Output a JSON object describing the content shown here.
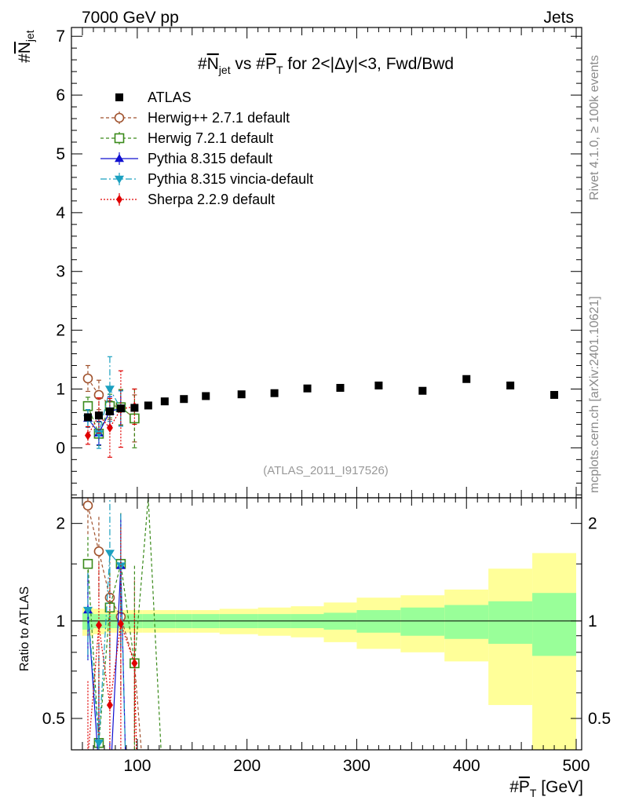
{
  "header": {
    "left": "7000 GeV pp",
    "right": "Jets"
  },
  "side_text": {
    "rivet": "Rivet 4.1.0, ≥ 100k events",
    "mcplots": "mcplots.cern.ch [arXiv:2401.10621]"
  },
  "watermark": "(ATLAS_2011_I917526)",
  "colors": {
    "data": "#000000",
    "herwig_pp": "#a0522d",
    "herwig7": "#3a8a1a",
    "pythia": "#1010d0",
    "vincia": "#1aa0c0",
    "sherpa": "#e00000",
    "band_inner": "#99ff99",
    "band_outer": "#ffff99"
  },
  "chart_data": {
    "type": "scatter",
    "title": {
      "prefix": "#",
      "n": "N",
      "n_sub": "jet",
      "mid": " vs #",
      "p": "P",
      "p_sub": "T",
      "suffix": " for 2<|Δy|<3, Fwd/Bwd"
    },
    "ylabel": {
      "prefix": "#",
      "n": "N",
      "sub": "jet"
    },
    "xlabel": {
      "prefix": "#",
      "p": "P",
      "sub": "T",
      "suffix": " [GeV]"
    },
    "ratio_ylabel": "Ratio to ATLAS",
    "xlim": [
      40,
      505
    ],
    "ylim": [
      -0.85,
      7.15
    ],
    "ratio_ylim": [
      0.4,
      2.4
    ],
    "x_ticks": [
      "100",
      "200",
      "300",
      "400",
      "500"
    ],
    "y_ticks": [
      "0",
      "1",
      "2",
      "3",
      "4",
      "5",
      "6",
      "7"
    ],
    "ratio_ticks": [
      "0.5",
      "1",
      "2"
    ],
    "legend": [
      "ATLAS",
      "Herwig++ 2.7.1 default",
      "Herwig 7.2.1 default",
      "Pythia 8.315 default",
      "Pythia 8.315 vincia-default",
      "Sherpa 2.2.9 default"
    ],
    "data": {
      "name": "ATLAS",
      "x": [
        55,
        65,
        75,
        85,
        97.5,
        110,
        125,
        142.5,
        162.5,
        195,
        225,
        255,
        285,
        320,
        360,
        400,
        440,
        480
      ],
      "y": [
        0.52,
        0.55,
        0.62,
        0.67,
        0.68,
        0.72,
        0.79,
        0.83,
        0.88,
        0.91,
        0.93,
        1.01,
        1.02,
        1.06,
        0.97,
        1.17,
        1.06,
        0.9
      ]
    },
    "ratio_band": {
      "x_edges": [
        50,
        60,
        70,
        80,
        90,
        105,
        115,
        135,
        150,
        175,
        210,
        240,
        270,
        300,
        340,
        380,
        420,
        460,
        500
      ],
      "inner": [
        0.06,
        0.05,
        0.05,
        0.05,
        0.05,
        0.05,
        0.05,
        0.05,
        0.05,
        0.05,
        0.05,
        0.05,
        0.06,
        0.08,
        0.1,
        0.12,
        0.15,
        0.22
      ],
      "outer": [
        0.1,
        0.09,
        0.08,
        0.08,
        0.08,
        0.08,
        0.08,
        0.08,
        0.08,
        0.09,
        0.1,
        0.11,
        0.14,
        0.18,
        0.2,
        0.25,
        0.45,
        0.62
      ]
    },
    "series": [
      {
        "name": "Herwig++ 2.7.1 default",
        "x": [
          55,
          65,
          75,
          85,
          97.5
        ],
        "y": [
          1.18,
          0.9,
          0.73,
          0.69,
          0.5
        ],
        "err": [
          0.22,
          0.25,
          0.25,
          0.3,
          0.4
        ],
        "ratio": [
          2.27,
          1.64,
          1.18,
          1.03,
          0.74
        ],
        "ratio_x_extra": [
          105
        ],
        "ratio_extra": [
          0.35
        ]
      },
      {
        "name": "Herwig 7.2.1 default",
        "x": [
          55,
          65,
          75,
          85,
          97.5
        ],
        "y": [
          0.71,
          0.24,
          0.71,
          0.69,
          0.5
        ],
        "err": [
          0.15,
          0.2,
          0.2,
          0.3,
          0.5
        ],
        "ratio": [
          1.5,
          0.42,
          1.1,
          1.5,
          0.74
        ],
        "ratio_x_extra": [
          110,
          122
        ],
        "ratio_extra": [
          2.4,
          0.38
        ]
      },
      {
        "name": "Pythia 8.315 default",
        "x": [
          55,
          65,
          75,
          85
        ],
        "y": [
          0.5,
          0.25,
          0.62,
          0.67
        ],
        "err": [
          0.15,
          0.2,
          0.25,
          0.3
        ],
        "ratio": [
          1.08,
          0.35,
          0.3,
          1.48
        ],
        "ratio_x_extra": [
          90
        ],
        "ratio_extra": [
          0.3
        ]
      },
      {
        "name": "Pythia 8.315 vincia-default",
        "x": [
          55,
          65,
          75,
          85
        ],
        "y": [
          0.5,
          0.24,
          1.0,
          0.67
        ],
        "err": [
          0.15,
          0.25,
          0.55,
          0.3
        ],
        "ratio": [
          1.08,
          0.42,
          1.62,
          1.48
        ],
        "ratio_x_extra": [
          90
        ],
        "ratio_extra": [
          0.3
        ]
      },
      {
        "name": "Sherpa 2.2.9 default",
        "x": [
          55,
          65,
          75,
          85,
          97.5
        ],
        "y": [
          0.21,
          0.55,
          0.34,
          0.66,
          0.7
        ],
        "err": [
          0.15,
          0.3,
          0.5,
          0.65,
          0.3
        ],
        "ratio": [
          0.38,
          0.97,
          0.55,
          0.98,
          0.74
        ],
        "ratio_x_extra": [
          100
        ],
        "ratio_extra": [
          0.3
        ]
      }
    ]
  }
}
